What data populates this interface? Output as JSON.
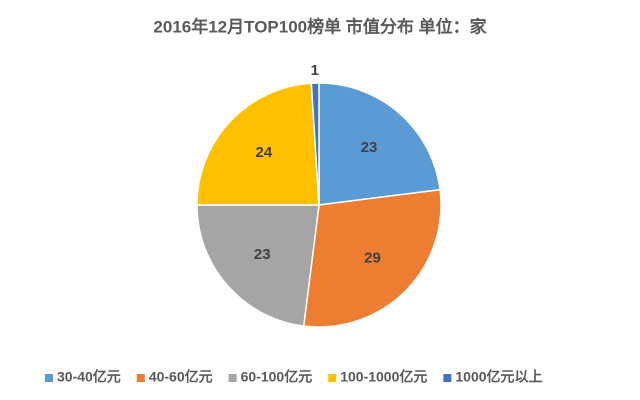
{
  "chart_data": {
    "type": "pie",
    "title": "2016年12月TOP100榜单 市值分布  单位：家",
    "categories": [
      "30-40亿元",
      "40-60亿元",
      "60-100亿元",
      "100-1000亿元",
      "1000亿元以上"
    ],
    "values": [
      23,
      29,
      23,
      24,
      1
    ],
    "colors": [
      "#5b9bd5",
      "#ed7d31",
      "#a5a5a5",
      "#ffc000",
      "#4472c4"
    ],
    "legend": "bottom"
  }
}
